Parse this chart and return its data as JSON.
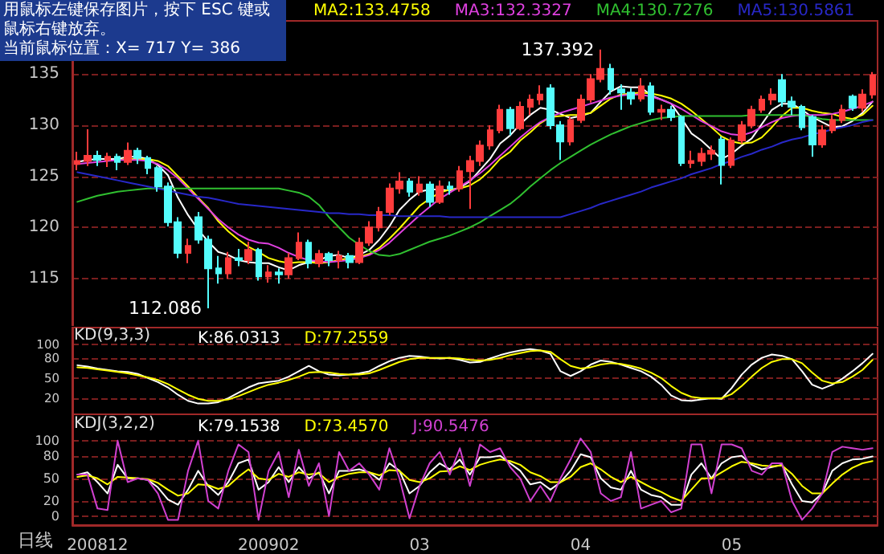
{
  "chart_data": [
    {
      "type": "candlestick",
      "categories": [
        null,
        null,
        "200812",
        null,
        null,
        null,
        null,
        null,
        null,
        null,
        null,
        null,
        null,
        null,
        null,
        null,
        null,
        null,
        null,
        "200902",
        null,
        null,
        null,
        null,
        null,
        null,
        null,
        null,
        null,
        null,
        null,
        null,
        null,
        null,
        "03",
        null,
        null,
        null,
        null,
        null,
        null,
        null,
        null,
        null,
        null,
        null,
        null,
        null,
        null,
        null,
        "04",
        null,
        null,
        null,
        null,
        null,
        null,
        null,
        null,
        null,
        null,
        null,
        null,
        null,
        null,
        "05",
        null,
        null,
        null,
        null,
        null,
        null,
        null,
        null,
        null,
        null,
        null,
        null,
        null,
        null
      ],
      "annotations": [
        "用鼠标左键保存图片，按下 ESC 键或鼠标右键放弃。",
        "当前鼠标位置：X= 717  Y= 386",
        "137.392",
        "112.086"
      ],
      "ylim": [
        110.2,
        140.2
      ],
      "yticks": [
        115,
        120,
        125,
        130,
        135
      ],
      "grid": "y",
      "legend": "top",
      "tick_labels": "y",
      "marker": "none",
      "line_style": "solid",
      "series": [
        {
          "type": "candlestick",
          "colors": [
            "#ff3c3c",
            "#ff3c3c",
            "#54fcfc",
            "#ff3c3c",
            "#54fcfc",
            "#ff3c3c",
            "#54fcfc",
            "#54fcfc",
            "#54fcfc",
            "#54fcfc",
            "#54fcfc",
            "#ff3c3c",
            "#54fcfc",
            "#54fcfc",
            "#54fcfc",
            "#ff3c3c",
            "#54fcfc",
            "#ff3c3c",
            "#54fcfc",
            "#ff3c3c",
            "#54fcfc",
            "#ff3c3c",
            "#ff3c3c",
            "#54fcfc",
            "#ff3c3c",
            "#54fcfc",
            "#ff3c3c",
            "#54fcfc",
            "#ff3c3c",
            "#ff3c3c",
            "#ff3c3c",
            "#ff3c3c",
            "#ff3c3c",
            "#54fcfc",
            "#ff3c3c",
            "#54fcfc",
            "#ff3c3c",
            "#54fcfc",
            "#ff3c3c",
            "#ff3c3c",
            "#ff3c3c",
            "#ff3c3c",
            "#ff3c3c",
            "#54fcfc",
            "#ff3c3c",
            "#ff3c3c",
            "#ff3c3c",
            "#54fcfc",
            "#54fcfc",
            "#ff3c3c",
            "#ff3c3c",
            "#ff3c3c",
            "#ff3c3c",
            "#54fcfc",
            "#54fcfc",
            "#54fcfc",
            "#ff3c3c",
            "#54fcfc",
            "#ff3c3c",
            "#54fcfc",
            "#54fcfc",
            "#ff3c3c",
            "#ff3c3c",
            "#ff3c3c",
            "#54fcfc",
            "#ff3c3c",
            "#ff3c3c",
            "#ff3c3c",
            "#ff3c3c",
            "#ff3c3c",
            "#54fcfc",
            "#54fcfc",
            "#54fcfc",
            "#54fcfc",
            "#ff3c3c",
            "#ff3c3c",
            "#ff3c3c",
            "#54fcfc",
            "#ff3c3c",
            "#ff3c3c"
          ],
          "ohlc": [
            [
              126.2,
              127.4,
              125.6,
              126.5
            ],
            [
              126.5,
              129.6,
              126.0,
              127.0
            ],
            [
              127.0,
              127.5,
              126.0,
              126.6
            ],
            [
              126.6,
              127.3,
              125.9,
              126.9
            ],
            [
              126.9,
              127.2,
              125.6,
              126.4
            ],
            [
              126.4,
              128.3,
              126.1,
              127.5
            ],
            [
              127.5,
              127.8,
              126.2,
              126.8
            ],
            [
              126.8,
              127.0,
              125.2,
              125.8
            ],
            [
              125.8,
              126.0,
              123.5,
              124.0
            ],
            [
              124.0,
              124.4,
              120.1,
              120.5
            ],
            [
              120.5,
              121.0,
              117.0,
              117.5
            ],
            [
              117.5,
              118.9,
              116.5,
              118.2
            ],
            [
              121.0,
              121.5,
              118.4,
              118.8
            ],
            [
              118.8,
              119.2,
              112.086,
              116.0
            ],
            [
              116.0,
              117.2,
              114.5,
              115.5
            ],
            [
              115.5,
              117.6,
              115.0,
              117.0
            ],
            [
              117.0,
              117.9,
              116.2,
              116.8
            ],
            [
              116.8,
              118.6,
              116.4,
              117.8
            ],
            [
              117.8,
              118.0,
              114.8,
              115.2
            ],
            [
              115.2,
              116.3,
              114.6,
              115.6
            ],
            [
              115.6,
              116.0,
              114.5,
              115.4
            ],
            [
              115.4,
              117.5,
              115.0,
              117.0
            ],
            [
              117.0,
              119.5,
              116.8,
              118.5
            ],
            [
              118.5,
              118.8,
              116.0,
              116.5
            ],
            [
              116.5,
              117.8,
              116.1,
              117.4
            ],
            [
              117.4,
              117.6,
              116.2,
              116.8
            ],
            [
              116.8,
              117.7,
              116.0,
              117.2
            ],
            [
              117.2,
              117.5,
              116.0,
              116.6
            ],
            [
              116.6,
              119.0,
              116.4,
              118.5
            ],
            [
              118.5,
              120.6,
              118.2,
              120.0
            ],
            [
              120.0,
              122.0,
              119.6,
              121.5
            ],
            [
              121.5,
              124.3,
              121.2,
              123.8
            ],
            [
              123.8,
              125.4,
              123.3,
              124.5
            ],
            [
              124.5,
              124.8,
              123.0,
              123.5
            ],
            [
              123.5,
              125.0,
              123.1,
              124.2
            ],
            [
              124.2,
              124.5,
              122.0,
              122.5
            ],
            [
              122.5,
              124.6,
              122.3,
              124.0
            ],
            [
              124.0,
              124.5,
              123.2,
              123.8
            ],
            [
              123.8,
              126.0,
              123.5,
              125.5
            ],
            [
              125.5,
              127.0,
              121.8,
              126.5
            ],
            [
              126.5,
              128.5,
              126.0,
              128.0
            ],
            [
              128.0,
              130.0,
              127.6,
              129.5
            ],
            [
              129.5,
              132.0,
              129.2,
              131.5
            ],
            [
              131.5,
              131.8,
              129.0,
              129.7
            ],
            [
              129.7,
              132.3,
              129.5,
              131.8
            ],
            [
              131.8,
              133.0,
              131.0,
              132.5
            ],
            [
              132.5,
              133.9,
              132.0,
              133.0
            ],
            [
              133.6,
              134.0,
              129.6,
              130.0
            ],
            [
              130.0,
              130.4,
              126.6,
              128.4
            ],
            [
              128.4,
              130.8,
              128.0,
              130.5
            ],
            [
              130.5,
              133.0,
              130.2,
              132.5
            ],
            [
              132.5,
              135.0,
              132.2,
              134.5
            ],
            [
              134.5,
              137.392,
              134.2,
              135.5
            ],
            [
              135.5,
              136.0,
              133.0,
              133.5
            ],
            [
              133.5,
              134.0,
              131.5,
              133.2
            ],
            [
              133.2,
              133.6,
              132.0,
              132.6
            ],
            [
              132.6,
              134.6,
              132.3,
              133.8
            ],
            [
              133.8,
              134.2,
              131.0,
              131.3
            ],
            [
              131.3,
              132.0,
              130.5,
              131.5
            ],
            [
              131.5,
              131.9,
              130.4,
              130.8
            ],
            [
              130.8,
              131.0,
              126.0,
              126.3
            ],
            [
              126.3,
              127.5,
              125.8,
              126.5
            ],
            [
              126.5,
              127.8,
              126.0,
              127.2
            ],
            [
              127.2,
              128.0,
              126.6,
              127.5
            ],
            [
              128.6,
              128.9,
              124.2,
              126.1
            ],
            [
              126.1,
              128.8,
              125.8,
              128.5
            ],
            [
              128.5,
              130.4,
              128.2,
              130.0
            ],
            [
              130.0,
              131.9,
              129.7,
              131.5
            ],
            [
              131.5,
              132.9,
              131.2,
              132.5
            ],
            [
              132.5,
              133.6,
              132.0,
              133.0
            ],
            [
              134.4,
              135.0,
              131.8,
              132.3
            ],
            [
              132.3,
              132.8,
              131.0,
              131.8
            ],
            [
              131.8,
              132.0,
              129.5,
              129.8
            ],
            [
              130.8,
              131.0,
              126.9,
              128.1
            ],
            [
              128.1,
              130.0,
              127.8,
              129.5
            ],
            [
              129.5,
              131.0,
              129.2,
              130.5
            ],
            [
              130.5,
              132.0,
              130.2,
              131.5
            ],
            [
              132.8,
              133.0,
              131.4,
              131.7
            ],
            [
              131.7,
              133.5,
              131.3,
              133.0
            ],
            [
              133.0,
              135.2,
              132.6,
              134.9
            ]
          ]
        },
        {
          "type": "line",
          "color": "#ffffff",
          "values": [
            126.4,
            126.6,
            126.7,
            126.7,
            126.7,
            126.9,
            126.9,
            126.7,
            126.1,
            125.1,
            122.9,
            121.2,
            119.8,
            118.6,
            117.6,
            117.3,
            116.8,
            116.6,
            116.5,
            116.5,
            116.1,
            115.8,
            116.3,
            116.6,
            116.8,
            117.2,
            117.3,
            117.0,
            117.3,
            117.8,
            118.8,
            120.1,
            121.7,
            122.7,
            123.5,
            123.7,
            123.7,
            123.6,
            123.9,
            124.5,
            125.6,
            126.7,
            128.2,
            129.0,
            130.1,
            131.0,
            131.7,
            131.5,
            131.1,
            130.7,
            130.9,
            131.2,
            132.3,
            133.3,
            133.8,
            133.7,
            133.7,
            132.9,
            132.5,
            132.1,
            130.7,
            129.2,
            128.5,
            127.6,
            126.7,
            127.2,
            128.0,
            128.7,
            130.1,
            131.5,
            132.1,
            132.1,
            131.5,
            130.8,
            130.3,
            129.8,
            129.9,
            130.4,
            131.2,
            132.3
          ]
        },
        {
          "name": "MA2:133.4758",
          "type": "line",
          "color": "#ffff00",
          "values": [
            null,
            null,
            null,
            null,
            126.6,
            126.7,
            126.7,
            126.7,
            126.5,
            126.0,
            125.0,
            124.0,
            122.9,
            121.9,
            120.6,
            119.6,
            118.8,
            118.1,
            117.6,
            117.0,
            116.7,
            116.5,
            116.6,
            116.6,
            116.5,
            116.6,
            116.8,
            117.0,
            117.1,
            117.4,
            118.0,
            118.9,
            119.9,
            121.0,
            122.1,
            122.8,
            123.4,
            123.7,
            123.8,
            124.1,
            124.7,
            125.6,
            126.7,
            127.4,
            128.5,
            129.3,
            130.2,
            130.8,
            130.9,
            131.0,
            131.0,
            131.2,
            131.9,
            132.6,
            133.0,
            133.1,
            133.2,
            133.1,
            132.9,
            132.6,
            132.1,
            131.4,
            130.6,
            129.8,
            128.9,
            128.4,
            128.2,
            128.3,
            128.8,
            129.8,
            130.9,
            131.7,
            131.7,
            131.4,
            131.2,
            131.1,
            130.8,
            130.6,
            131.0,
            131.9
          ]
        },
        {
          "name": "MA3:132.3327",
          "type": "line",
          "color": "#e040e0",
          "values": [
            126.2,
            126.3,
            126.4,
            126.5,
            126.6,
            126.6,
            126.6,
            126.5,
            126.2,
            125.6,
            124.8,
            123.8,
            122.8,
            121.8,
            120.8,
            120.0,
            119.3,
            118.8,
            118.5,
            118.4,
            118.0,
            117.5,
            117.1,
            116.8,
            116.7,
            116.6,
            116.7,
            116.8,
            117.0,
            117.3,
            117.8,
            118.5,
            119.4,
            120.3,
            121.2,
            122.0,
            122.8,
            123.4,
            124.0,
            124.6,
            125.3,
            126.1,
            127.0,
            127.9,
            128.8,
            129.6,
            130.3,
            130.8,
            131.2,
            131.5,
            131.8,
            132.1,
            132.4,
            132.7,
            132.9,
            133.0,
            133.0,
            132.8,
            132.5,
            132.1,
            131.6,
            131.0,
            130.4,
            129.9,
            129.4,
            129.1,
            129.0,
            129.3,
            129.8,
            130.3,
            130.7,
            130.9,
            131.0,
            131.0,
            131.0,
            131.1,
            131.3,
            131.6,
            131.9,
            132.3
          ]
        },
        {
          "name": "MA4:130.7276",
          "type": "line",
          "color": "#30c030",
          "values": [
            122.5,
            122.8,
            123.1,
            123.3,
            123.5,
            123.6,
            123.7,
            123.8,
            123.8,
            123.8,
            123.8,
            123.8,
            123.8,
            123.8,
            123.8,
            123.8,
            123.8,
            123.8,
            123.8,
            123.8,
            123.8,
            123.6,
            123.4,
            123.0,
            122.2,
            121.0,
            120.0,
            119.0,
            118.3,
            117.7,
            117.3,
            117.2,
            117.4,
            117.8,
            118.2,
            118.6,
            118.9,
            119.2,
            119.6,
            120.0,
            120.5,
            121.1,
            121.7,
            122.3,
            123.1,
            124.0,
            124.8,
            125.6,
            126.3,
            126.9,
            127.5,
            128.1,
            128.6,
            129.1,
            129.5,
            129.9,
            130.2,
            130.5,
            130.7,
            130.8,
            130.9,
            130.9,
            130.9,
            130.9,
            130.9,
            130.9,
            130.9,
            131.0,
            131.0,
            131.0,
            131.0,
            131.0,
            131.0,
            130.8,
            130.6,
            130.5,
            130.5,
            130.5,
            130.5,
            130.5
          ]
        },
        {
          "name": "MA5:130.5861",
          "type": "line",
          "color": "#2828c8",
          "values": [
            125.4,
            125.2,
            125.0,
            124.8,
            124.6,
            124.4,
            124.2,
            124.0,
            123.8,
            123.6,
            123.4,
            123.2,
            123.0,
            122.9,
            122.7,
            122.5,
            122.3,
            122.2,
            122.1,
            122.0,
            121.9,
            121.8,
            121.7,
            121.6,
            121.5,
            121.4,
            121.4,
            121.3,
            121.3,
            121.2,
            121.2,
            121.2,
            121.1,
            121.1,
            121.1,
            121.1,
            121.1,
            121.0,
            121.0,
            121.0,
            121.0,
            121.0,
            121.0,
            121.0,
            121.0,
            121.0,
            121.0,
            121.0,
            121.0,
            121.3,
            121.6,
            121.9,
            122.3,
            122.6,
            122.9,
            123.2,
            123.5,
            123.9,
            124.2,
            124.5,
            124.8,
            125.2,
            125.5,
            125.8,
            126.2,
            126.5,
            126.9,
            127.2,
            127.6,
            127.9,
            128.3,
            128.6,
            128.8,
            129.1,
            129.3,
            129.6,
            129.8,
            130.0,
            130.3,
            130.5
          ]
        }
      ]
    },
    {
      "type": "line",
      "title": "KD(9,3,3)",
      "categories": [
        null,
        null,
        "200812",
        null,
        null,
        null,
        null,
        null,
        null,
        null,
        null,
        null,
        null,
        null,
        null,
        null,
        null,
        null,
        null,
        "200902",
        null,
        null,
        null,
        null,
        null,
        null,
        null,
        null,
        null,
        null,
        null,
        null,
        null,
        null,
        "03",
        null,
        null,
        null,
        null,
        null,
        null,
        null,
        null,
        null,
        null,
        null,
        null,
        null,
        null,
        null,
        "04",
        null,
        null,
        null,
        null,
        null,
        null,
        null,
        null,
        null,
        null,
        null,
        null,
        null,
        null,
        "05",
        null,
        null,
        null,
        null,
        null,
        null,
        null,
        null,
        null,
        null,
        null,
        null,
        null,
        null
      ],
      "ylim": [
        -4,
        125
      ],
      "yticks": [
        20,
        50,
        80,
        100
      ],
      "grid": "y",
      "legend": "top",
      "tick_labels": "y",
      "marker": "none",
      "line_style": "solid",
      "series": [
        {
          "name": "K:86.0313",
          "color": "#ffffff",
          "values": [
            69,
            67,
            64,
            62,
            60,
            59,
            56,
            50,
            44,
            36,
            25,
            16,
            12,
            12,
            14,
            20,
            28,
            36,
            42,
            44,
            46,
            52,
            60,
            68,
            60,
            55,
            54,
            55,
            57,
            60,
            68,
            75,
            80,
            83,
            82,
            80,
            79,
            80,
            77,
            73,
            74,
            79,
            84,
            88,
            91,
            93,
            91,
            86,
            60,
            53,
            60,
            70,
            76,
            74,
            70,
            65,
            60,
            52,
            40,
            24,
            17,
            16,
            18,
            20,
            19,
            35,
            55,
            70,
            80,
            85,
            83,
            78,
            60,
            40,
            34,
            40,
            49,
            60,
            72,
            86
          ]
        },
        {
          "name": "D:77.2559",
          "color": "#ffff00",
          "values": [
            66,
            65,
            63,
            61,
            59,
            57,
            54,
            51,
            47,
            41,
            33,
            25,
            19,
            16,
            16,
            18,
            23,
            29,
            35,
            40,
            43,
            47,
            52,
            58,
            59,
            58,
            56,
            55,
            55,
            57,
            62,
            68,
            74,
            78,
            80,
            80,
            80,
            80,
            79,
            77,
            76,
            77,
            80,
            84,
            87,
            90,
            91,
            89,
            78,
            68,
            64,
            66,
            70,
            72,
            71,
            68,
            64,
            58,
            50,
            38,
            28,
            22,
            20,
            20,
            20,
            26,
            38,
            52,
            65,
            74,
            78,
            78,
            72,
            58,
            46,
            42,
            44,
            52,
            62,
            77
          ]
        }
      ]
    },
    {
      "type": "line",
      "title": "KDJ(3,2,2)",
      "xlabel": "日线",
      "categories": [
        null,
        null,
        "200812",
        null,
        null,
        null,
        null,
        null,
        null,
        null,
        null,
        null,
        null,
        null,
        null,
        null,
        null,
        null,
        null,
        "200902",
        null,
        null,
        null,
        null,
        null,
        null,
        null,
        null,
        null,
        null,
        null,
        null,
        null,
        null,
        "03",
        null,
        null,
        null,
        null,
        null,
        null,
        null,
        null,
        null,
        null,
        null,
        null,
        null,
        null,
        null,
        "04",
        null,
        null,
        null,
        null,
        null,
        null,
        null,
        null,
        null,
        null,
        null,
        null,
        null,
        null,
        "05",
        null,
        null,
        null,
        null,
        null,
        null,
        null,
        null,
        null,
        null,
        null,
        null,
        null,
        null
      ],
      "ylim": [
        -12,
        135
      ],
      "yticks": [
        0,
        20,
        50,
        80,
        100
      ],
      "grid": "y",
      "legend": "top",
      "marker": "none",
      "line_style": "solid",
      "series": [
        {
          "name": "K:79.1538",
          "color": "#ffffff",
          "values": [
            55,
            58,
            45,
            30,
            68,
            50,
            50,
            48,
            38,
            22,
            15,
            35,
            60,
            40,
            28,
            45,
            70,
            75,
            35,
            45,
            65,
            45,
            65,
            50,
            58,
            30,
            60,
            60,
            62,
            58,
            48,
            70,
            60,
            30,
            40,
            58,
            70,
            62,
            75,
            55,
            78,
            78,
            80,
            70,
            60,
            42,
            45,
            35,
            45,
            60,
            82,
            78,
            50,
            38,
            35,
            60,
            35,
            28,
            25,
            15,
            15,
            55,
            70,
            50,
            70,
            78,
            80,
            68,
            62,
            65,
            68,
            42,
            20,
            18,
            30,
            60,
            70,
            75,
            76,
            79
          ]
        },
        {
          "name": "D:73.4570",
          "color": "#ffff00",
          "values": [
            52,
            54,
            50,
            42,
            52,
            51,
            50,
            49,
            44,
            35,
            27,
            30,
            42,
            41,
            36,
            40,
            52,
            62,
            50,
            48,
            56,
            52,
            58,
            55,
            57,
            45,
            52,
            56,
            58,
            58,
            54,
            61,
            60,
            48,
            45,
            50,
            59,
            60,
            66,
            61,
            68,
            72,
            75,
            73,
            68,
            58,
            53,
            45,
            45,
            52,
            65,
            70,
            62,
            52,
            45,
            52,
            45,
            38,
            32,
            25,
            20,
            35,
            50,
            50,
            58,
            66,
            72,
            70,
            67,
            66,
            67,
            56,
            40,
            30,
            30,
            43,
            55,
            64,
            70,
            73
          ]
        },
        {
          "name": "J:90.5476",
          "color": "#d040d0",
          "values": [
            55,
            55,
            10,
            8,
            100,
            45,
            50,
            48,
            30,
            -5,
            -5,
            60,
            100,
            20,
            10,
            60,
            95,
            85,
            -5,
            60,
            85,
            25,
            88,
            40,
            70,
            0,
            85,
            60,
            70,
            55,
            35,
            90,
            50,
            -3,
            40,
            70,
            85,
            55,
            90,
            40,
            95,
            85,
            90,
            65,
            50,
            20,
            40,
            20,
            50,
            75,
            103,
            85,
            30,
            20,
            25,
            85,
            10,
            15,
            20,
            5,
            10,
            95,
            95,
            30,
            95,
            95,
            90,
            60,
            55,
            70,
            70,
            20,
            -5,
            10,
            30,
            85,
            92,
            90,
            88,
            90
          ]
        }
      ]
    }
  ]
}
